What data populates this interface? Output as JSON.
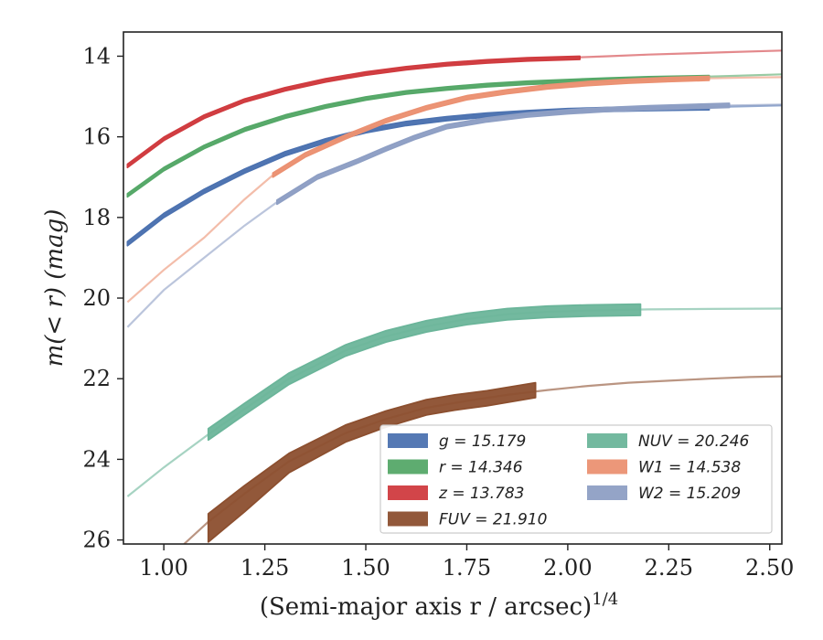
{
  "chart_data": {
    "type": "line",
    "xlabel": "(Semi-major axis r / arcsec)",
    "xlabel_sup": "1/4",
    "ylabel": "m(< r) (mag)",
    "xlim": [
      0.9,
      2.53
    ],
    "ylim": [
      26.1,
      13.4
    ],
    "y_inverted": true,
    "x_ticks": [
      1.0,
      1.25,
      1.5,
      1.75,
      2.0,
      2.25,
      2.5
    ],
    "x_tick_labels": [
      "1.00",
      "1.25",
      "1.50",
      "1.75",
      "2.00",
      "2.25",
      "2.50"
    ],
    "y_ticks": [
      14,
      16,
      18,
      20,
      22,
      24,
      26
    ],
    "y_tick_labels": [
      "14",
      "16",
      "18",
      "20",
      "22",
      "24",
      "26"
    ],
    "grid": false,
    "legend": {
      "placement": "lower-right",
      "columns": 2,
      "entries": [
        {
          "label": "g = 15.179",
          "color": "#4c72b0"
        },
        {
          "label": "r = 14.346",
          "color": "#55a868"
        },
        {
          "label": "z = 13.783",
          "color": "#d03b3f"
        },
        {
          "label": "FUV = 21.910",
          "color": "#8c4f2f"
        },
        {
          "label": "NUV = 20.246",
          "color": "#6bb59a"
        },
        {
          "label": "W1 = 14.538",
          "color": "#eb9172"
        },
        {
          "label": "W2 = 15.209",
          "color": "#8e9fc4"
        }
      ]
    },
    "series": [
      {
        "name": "g",
        "color": "#4c72b0",
        "band_x": [
          0.91,
          1.0,
          1.1,
          1.2,
          1.3,
          1.4,
          1.5,
          1.6,
          1.7,
          1.8,
          1.9,
          2.0,
          2.1,
          2.2,
          2.35
        ],
        "band_y": [
          18.65,
          17.95,
          17.35,
          16.85,
          16.42,
          16.1,
          15.85,
          15.67,
          15.55,
          15.46,
          15.4,
          15.35,
          15.32,
          15.3,
          15.28
        ],
        "band_err": 0.05,
        "model_x": [
          0.91,
          1.0,
          1.1,
          1.2,
          1.3,
          1.4,
          1.5,
          1.6,
          1.7,
          1.8,
          1.9,
          2.0,
          2.1,
          2.2,
          2.3,
          2.4,
          2.53
        ],
        "model_y": [
          18.65,
          17.95,
          17.35,
          16.85,
          16.42,
          16.1,
          15.85,
          15.67,
          15.55,
          15.46,
          15.4,
          15.35,
          15.32,
          15.29,
          15.27,
          15.25,
          15.22
        ]
      },
      {
        "name": "r",
        "color": "#55a868",
        "band_x": [
          0.91,
          1.0,
          1.1,
          1.2,
          1.3,
          1.4,
          1.5,
          1.6,
          1.7,
          1.8,
          1.9,
          2.0,
          2.1,
          2.2,
          2.35
        ],
        "band_y": [
          17.45,
          16.8,
          16.25,
          15.82,
          15.5,
          15.25,
          15.05,
          14.9,
          14.8,
          14.72,
          14.66,
          14.62,
          14.58,
          14.55,
          14.52
        ],
        "band_err": 0.04,
        "model_x": [
          0.91,
          1.0,
          1.1,
          1.2,
          1.3,
          1.4,
          1.5,
          1.6,
          1.7,
          1.8,
          1.9,
          2.0,
          2.1,
          2.2,
          2.3,
          2.4,
          2.53
        ],
        "model_y": [
          17.45,
          16.8,
          16.25,
          15.82,
          15.5,
          15.25,
          15.05,
          14.9,
          14.8,
          14.72,
          14.66,
          14.62,
          14.58,
          14.55,
          14.52,
          14.49,
          14.45
        ]
      },
      {
        "name": "z",
        "color": "#d03b3f",
        "band_x": [
          0.91,
          1.0,
          1.1,
          1.2,
          1.3,
          1.4,
          1.5,
          1.6,
          1.7,
          1.8,
          1.9,
          2.03
        ],
        "band_y": [
          16.72,
          16.05,
          15.5,
          15.1,
          14.82,
          14.6,
          14.43,
          14.3,
          14.2,
          14.13,
          14.08,
          14.04
        ],
        "band_err": 0.04,
        "model_x": [
          0.91,
          1.0,
          1.1,
          1.2,
          1.3,
          1.4,
          1.5,
          1.6,
          1.7,
          1.8,
          1.9,
          2.0,
          2.1,
          2.2,
          2.3,
          2.4,
          2.53
        ],
        "model_y": [
          16.72,
          16.05,
          15.5,
          15.1,
          14.82,
          14.6,
          14.43,
          14.3,
          14.2,
          14.13,
          14.08,
          14.04,
          14.0,
          13.96,
          13.93,
          13.9,
          13.86
        ]
      },
      {
        "name": "NUV",
        "color": "#6bb59a",
        "band_x": [
          1.11,
          1.2,
          1.31,
          1.45,
          1.55,
          1.65,
          1.75,
          1.85,
          1.95,
          2.05,
          2.18
        ],
        "band_y": [
          23.38,
          22.75,
          22.0,
          21.3,
          20.95,
          20.7,
          20.52,
          20.4,
          20.34,
          20.31,
          20.29
        ],
        "band_err": 0.14,
        "model_x": [
          0.91,
          1.0,
          1.11,
          1.2,
          1.31,
          1.45,
          1.55,
          1.65,
          1.75,
          1.85,
          1.95,
          2.05,
          2.2,
          2.35,
          2.53
        ],
        "model_y": [
          24.92,
          24.2,
          23.38,
          22.75,
          22.0,
          21.3,
          20.95,
          20.7,
          20.52,
          20.4,
          20.34,
          20.31,
          20.28,
          20.27,
          20.26
        ]
      },
      {
        "name": "FUV",
        "color": "#8c4f2f",
        "band_x": [
          1.11,
          1.2,
          1.31,
          1.45,
          1.55,
          1.65,
          1.72,
          1.8,
          1.92
        ],
        "band_y": [
          25.55,
          24.85,
          24.05,
          23.35,
          23.0,
          22.72,
          22.6,
          22.5,
          22.3
        ],
        "band_err_lo": [
          0.5,
          0.45,
          0.28,
          0.22,
          0.2,
          0.18,
          0.18,
          0.17,
          0.17
        ],
        "band_err": 0.2,
        "model_x": [
          1.05,
          1.11,
          1.2,
          1.31,
          1.45,
          1.55,
          1.65,
          1.75,
          1.85,
          1.95,
          2.05,
          2.15,
          2.25,
          2.35,
          2.45,
          2.53
        ],
        "model_y": [
          26.1,
          25.55,
          24.85,
          24.05,
          23.35,
          23.0,
          22.72,
          22.55,
          22.4,
          22.28,
          22.18,
          22.1,
          22.05,
          22.0,
          21.96,
          21.94
        ]
      },
      {
        "name": "W1",
        "color": "#eb9172",
        "band_x": [
          1.27,
          1.35,
          1.45,
          1.55,
          1.65,
          1.75,
          1.85,
          1.95,
          2.05,
          2.15,
          2.25,
          2.35
        ],
        "band_y": [
          16.95,
          16.45,
          16.0,
          15.6,
          15.28,
          15.03,
          14.88,
          14.76,
          14.68,
          14.62,
          14.58,
          14.55
        ],
        "band_err": 0.05,
        "model_x": [
          0.91,
          1.0,
          1.1,
          1.2,
          1.27,
          1.35,
          1.45,
          1.55,
          1.65,
          1.75,
          1.85,
          1.95,
          2.05,
          2.15,
          2.25,
          2.35,
          2.45,
          2.53
        ],
        "model_y": [
          20.1,
          19.3,
          18.5,
          17.55,
          16.95,
          16.45,
          16.0,
          15.6,
          15.28,
          15.03,
          14.88,
          14.76,
          14.68,
          14.62,
          14.58,
          14.55,
          14.53,
          14.52
        ]
      },
      {
        "name": "W2",
        "color": "#8e9fc4",
        "band_x": [
          1.28,
          1.38,
          1.48,
          1.55,
          1.62,
          1.7,
          1.8,
          1.9,
          2.0,
          2.1,
          2.2,
          2.4
        ],
        "band_y": [
          17.62,
          17.0,
          16.6,
          16.3,
          16.02,
          15.75,
          15.58,
          15.46,
          15.38,
          15.32,
          15.28,
          15.22
        ],
        "band_err": 0.05,
        "model_x": [
          0.91,
          1.0,
          1.1,
          1.2,
          1.28,
          1.38,
          1.48,
          1.55,
          1.62,
          1.7,
          1.8,
          1.9,
          2.0,
          2.1,
          2.2,
          2.3,
          2.4,
          2.53
        ],
        "model_y": [
          20.72,
          19.8,
          19.0,
          18.2,
          17.62,
          17.0,
          16.6,
          16.3,
          16.02,
          15.75,
          15.58,
          15.46,
          15.38,
          15.32,
          15.28,
          15.25,
          15.22,
          15.2
        ]
      }
    ]
  }
}
